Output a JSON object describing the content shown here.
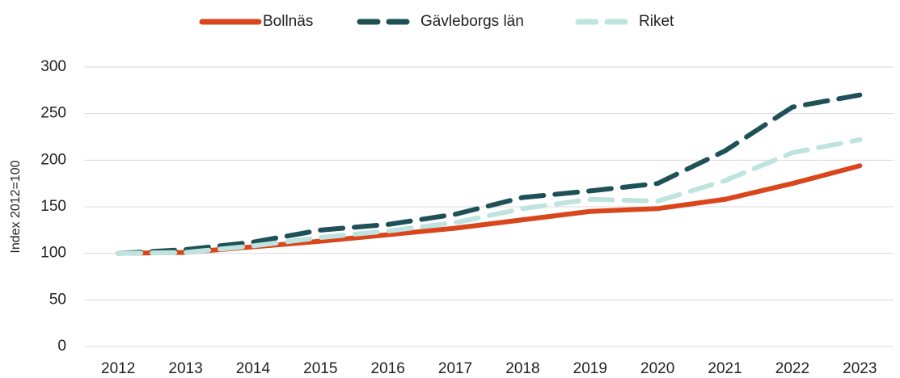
{
  "chart_data": {
    "type": "line",
    "y_label": "Index 2012=100",
    "categories": [
      "2012",
      "2013",
      "2014",
      "2015",
      "2016",
      "2017",
      "2018",
      "2019",
      "2020",
      "2021",
      "2022",
      "2023"
    ],
    "series": [
      {
        "name": "Bollnäs",
        "color": "#d9461c",
        "dash": "solid",
        "values": [
          100,
          101,
          107,
          113,
          120,
          127,
          136,
          145,
          148,
          158,
          175,
          194
        ]
      },
      {
        "name": "Gävleborgs län",
        "color": "#1e5157",
        "dash": "dashed",
        "values": [
          100,
          104,
          112,
          125,
          131,
          142,
          160,
          167,
          175,
          210,
          257,
          270
        ]
      },
      {
        "name": "Riket",
        "color": "#bfe3df",
        "dash": "dashed",
        "values": [
          100,
          101,
          108,
          117,
          124,
          133,
          148,
          158,
          156,
          178,
          208,
          222
        ]
      }
    ],
    "ylim": [
      0,
      300
    ],
    "yticks": [
      0,
      50,
      100,
      150,
      200,
      250,
      300
    ],
    "grid": true,
    "legend": "top"
  }
}
